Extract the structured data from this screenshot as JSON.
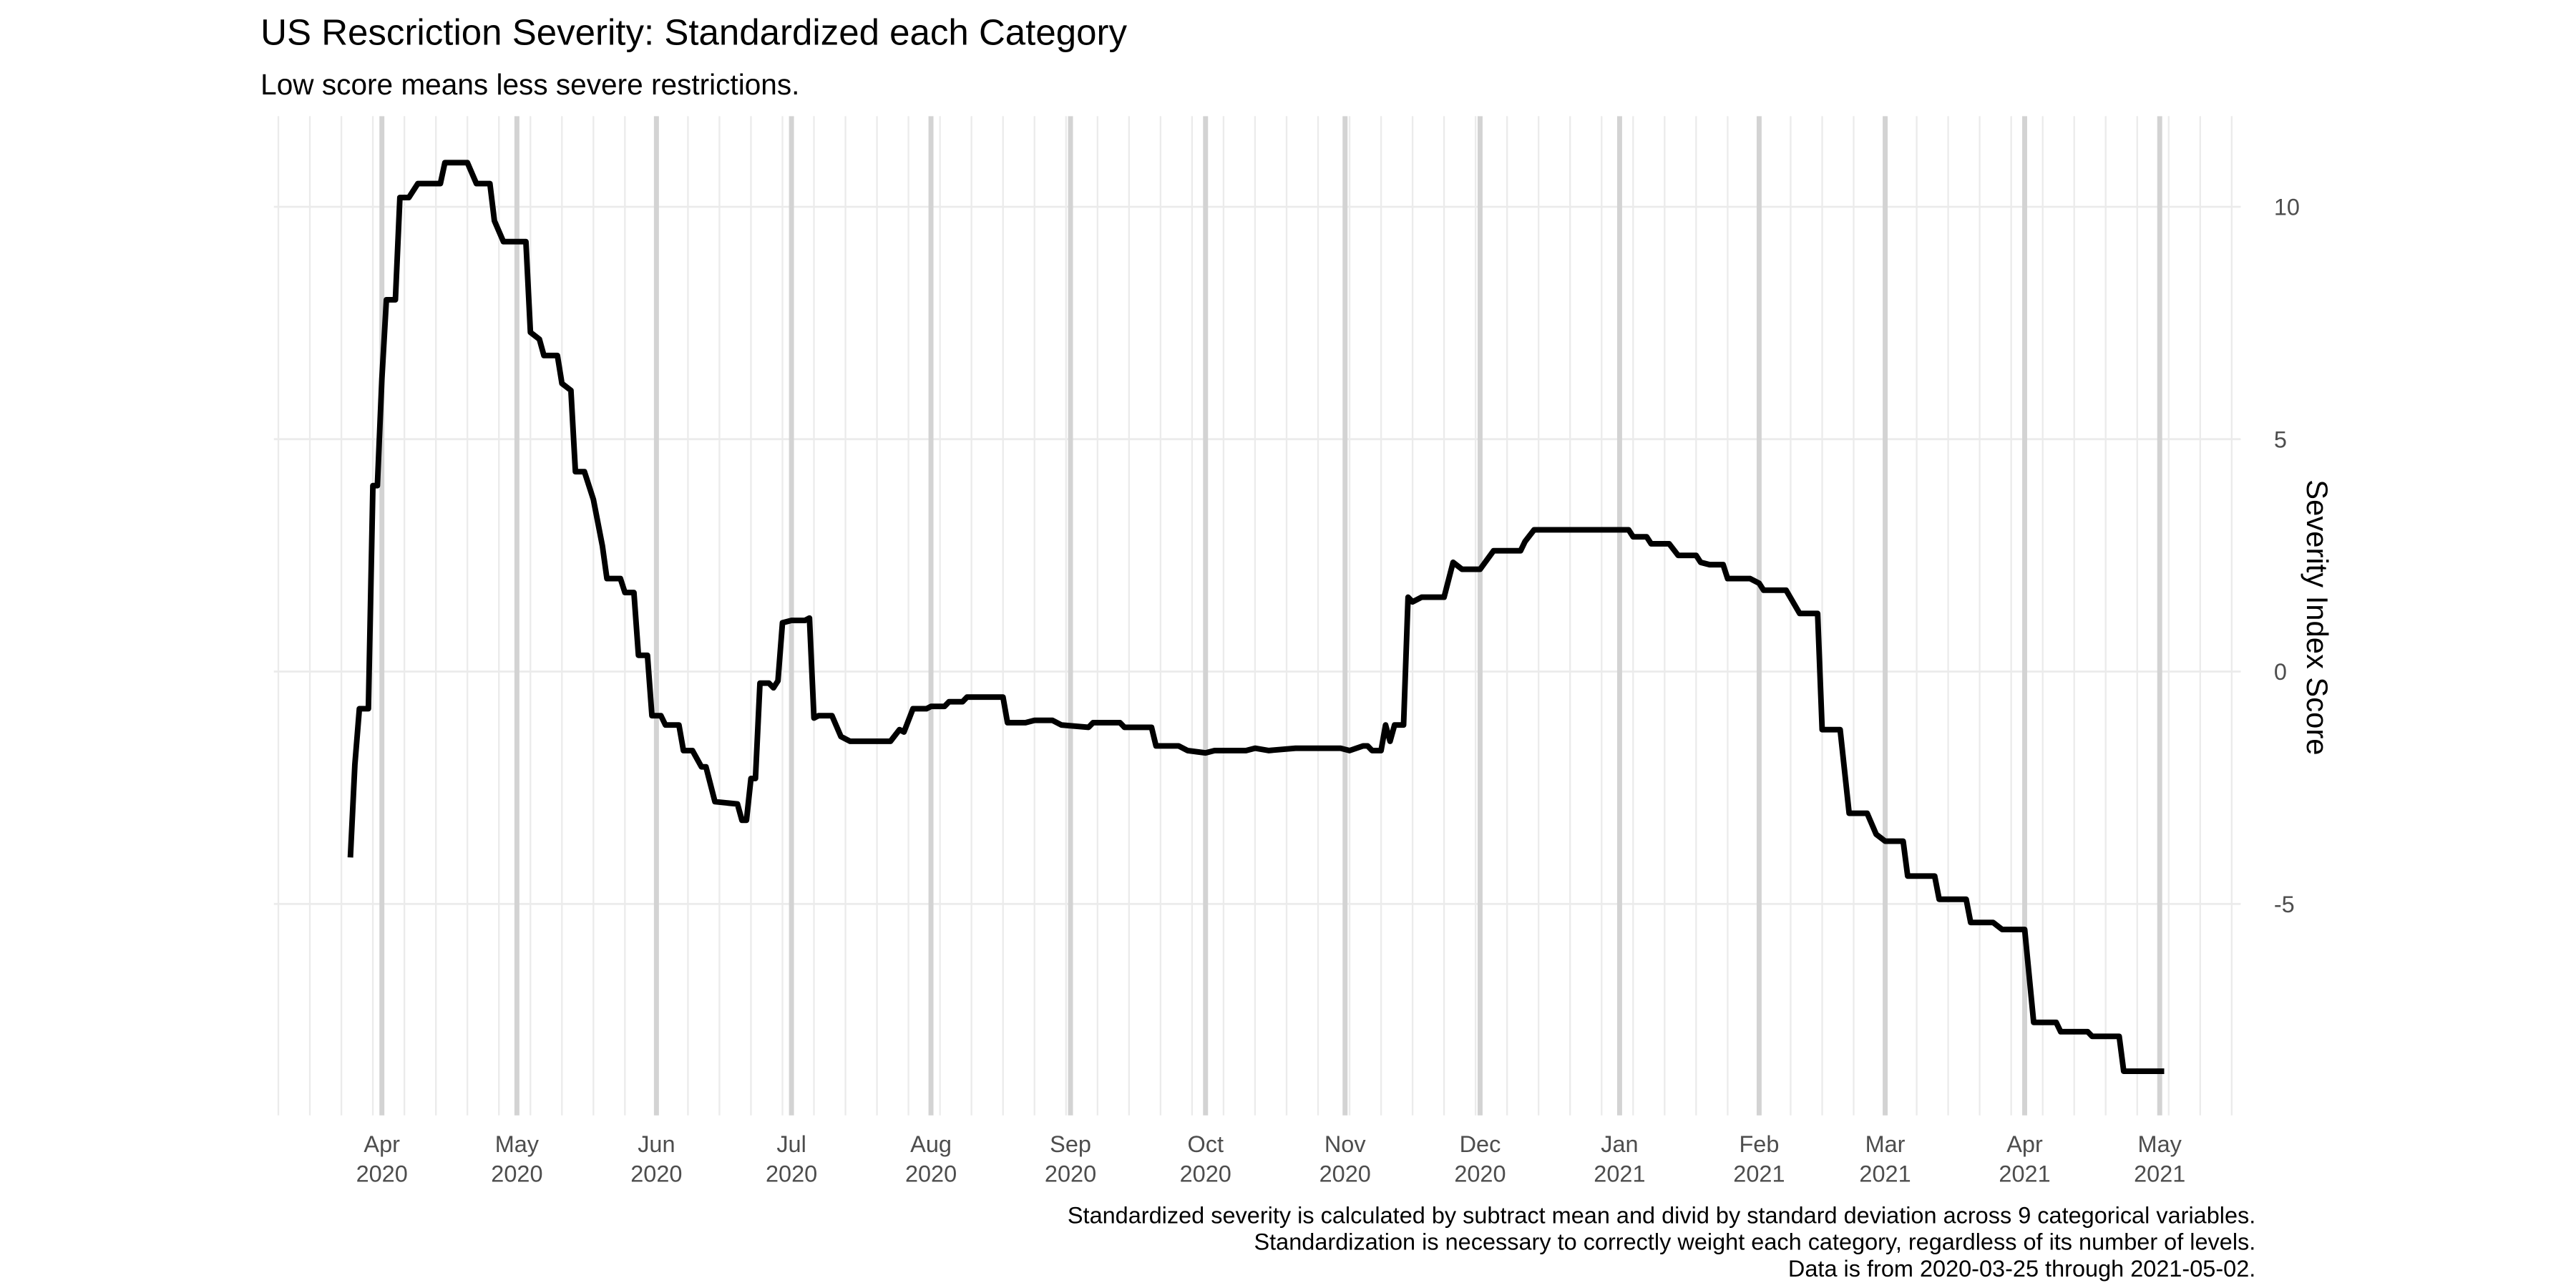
{
  "chart_data": {
    "type": "line",
    "title": "US Rescriction Severity: Standardized each Category",
    "subtitle": "Low score means less severe restrictions.",
    "y_label": "Severity Index Score",
    "caption": [
      "Standardized severity is calculated by subtract mean and divid by standard deviation across 9 categorical variables.",
      "Standardization is necessary to correctly weight each category, regardless of its number of levels.",
      "Data is from 2020-03-25 through 2021-05-02."
    ],
    "y_axis_side": "right",
    "xlim": [
      "2020-03-08",
      "2021-05-19"
    ],
    "ylim": [
      -9.55,
      11.95
    ],
    "yticks": [
      -5,
      0,
      5,
      10
    ],
    "xticks": [
      {
        "value": "2020-04-01",
        "label": [
          "Apr",
          "2020"
        ]
      },
      {
        "value": "2020-05-01",
        "label": [
          "May",
          "2020"
        ]
      },
      {
        "value": "2020-06-01",
        "label": [
          "Jun",
          "2020"
        ]
      },
      {
        "value": "2020-07-01",
        "label": [
          "Jul",
          "2020"
        ]
      },
      {
        "value": "2020-08-01",
        "label": [
          "Aug",
          "2020"
        ]
      },
      {
        "value": "2020-09-01",
        "label": [
          "Sep",
          "2020"
        ]
      },
      {
        "value": "2020-10-01",
        "label": [
          "Oct",
          "2020"
        ]
      },
      {
        "value": "2020-11-01",
        "label": [
          "Nov",
          "2020"
        ]
      },
      {
        "value": "2020-12-01",
        "label": [
          "Dec",
          "2020"
        ]
      },
      {
        "value": "2021-01-01",
        "label": [
          "Jan",
          "2021"
        ]
      },
      {
        "value": "2021-02-01",
        "label": [
          "Feb",
          "2021"
        ]
      },
      {
        "value": "2021-03-01",
        "label": [
          "Mar",
          "2021"
        ]
      },
      {
        "value": "2021-04-01",
        "label": [
          "Apr",
          "2021"
        ]
      },
      {
        "value": "2021-05-01",
        "label": [
          "May",
          "2021"
        ]
      }
    ],
    "minor_xticks": [
      "2020-03-09",
      "2020-03-16",
      "2020-03-23",
      "2020-03-30",
      "2020-04-06",
      "2020-04-13",
      "2020-04-20",
      "2020-04-27",
      "2020-05-04",
      "2020-05-11",
      "2020-05-18",
      "2020-05-25",
      "2020-06-01",
      "2020-06-08",
      "2020-06-15",
      "2020-06-22",
      "2020-06-29",
      "2020-07-06",
      "2020-07-13",
      "2020-07-20",
      "2020-07-27",
      "2020-08-03",
      "2020-08-10",
      "2020-08-17",
      "2020-08-24",
      "2020-08-31",
      "2020-09-07",
      "2020-09-14",
      "2020-09-21",
      "2020-09-28",
      "2020-10-05",
      "2020-10-12",
      "2020-10-19",
      "2020-10-26",
      "2020-11-02",
      "2020-11-09",
      "2020-11-16",
      "2020-11-23",
      "2020-11-30",
      "2020-12-07",
      "2020-12-14",
      "2020-12-21",
      "2020-12-28",
      "2021-01-04",
      "2021-01-11",
      "2021-01-18",
      "2021-01-25",
      "2021-02-01",
      "2021-02-08",
      "2021-02-15",
      "2021-02-22",
      "2021-03-01",
      "2021-03-08",
      "2021-03-15",
      "2021-03-22",
      "2021-03-29",
      "2021-04-05",
      "2021-04-12",
      "2021-04-19",
      "2021-04-26",
      "2021-05-03",
      "2021-05-10",
      "2021-05-17"
    ],
    "grid": true,
    "series": [
      {
        "color": "#000000",
        "x": [
          "2020-03-25",
          "2020-03-26",
          "2020-03-27",
          "2020-03-29",
          "2020-03-30",
          "2020-03-31",
          "2020-04-01",
          "2020-04-02",
          "2020-04-04",
          "2020-04-05",
          "2020-04-07",
          "2020-04-09",
          "2020-04-14",
          "2020-04-15",
          "2020-04-20",
          "2020-04-22",
          "2020-04-25",
          "2020-04-26",
          "2020-04-28",
          "2020-05-03",
          "2020-05-04",
          "2020-05-06",
          "2020-05-07",
          "2020-05-10",
          "2020-05-11",
          "2020-05-13",
          "2020-05-14",
          "2020-05-16",
          "2020-05-18",
          "2020-05-20",
          "2020-05-21",
          "2020-05-24",
          "2020-05-25",
          "2020-05-27",
          "2020-05-28",
          "2020-05-30",
          "2020-05-31",
          "2020-06-02",
          "2020-06-03",
          "2020-06-06",
          "2020-06-07",
          "2020-06-09",
          "2020-06-11",
          "2020-06-12",
          "2020-06-14",
          "2020-06-19",
          "2020-06-20",
          "2020-06-21",
          "2020-06-22",
          "2020-06-23",
          "2020-06-24",
          "2020-06-26",
          "2020-06-27",
          "2020-06-28",
          "2020-06-29",
          "2020-07-01",
          "2020-07-04",
          "2020-07-05",
          "2020-07-06",
          "2020-07-07",
          "2020-07-10",
          "2020-07-12",
          "2020-07-14",
          "2020-07-23",
          "2020-07-25",
          "2020-07-26",
          "2020-07-28",
          "2020-07-31",
          "2020-08-01",
          "2020-08-04",
          "2020-08-05",
          "2020-08-08",
          "2020-08-09",
          "2020-08-17",
          "2020-08-18",
          "2020-08-22",
          "2020-08-24",
          "2020-08-28",
          "2020-08-30",
          "2020-09-05",
          "2020-09-06",
          "2020-09-12",
          "2020-09-13",
          "2020-09-19",
          "2020-09-20",
          "2020-09-25",
          "2020-09-27",
          "2020-10-01",
          "2020-10-03",
          "2020-10-10",
          "2020-10-12",
          "2020-10-15",
          "2020-10-21",
          "2020-10-31",
          "2020-11-02",
          "2020-11-05",
          "2020-11-06",
          "2020-11-07",
          "2020-11-09",
          "2020-11-10",
          "2020-11-11",
          "2020-11-12",
          "2020-11-14",
          "2020-11-15",
          "2020-11-16",
          "2020-11-18",
          "2020-11-23",
          "2020-11-25",
          "2020-11-27",
          "2020-12-01",
          "2020-12-04",
          "2020-12-10",
          "2020-12-11",
          "2020-12-13",
          "2021-01-03",
          "2021-01-04",
          "2021-01-07",
          "2021-01-08",
          "2021-01-12",
          "2021-01-14",
          "2021-01-18",
          "2021-01-19",
          "2021-01-21",
          "2021-01-24",
          "2021-01-25",
          "2021-01-30",
          "2021-02-01",
          "2021-02-02",
          "2021-02-07",
          "2021-02-10",
          "2021-02-14",
          "2021-02-15",
          "2021-02-19",
          "2021-02-21",
          "2021-02-25",
          "2021-02-27",
          "2021-03-01",
          "2021-03-05",
          "2021-03-06",
          "2021-03-12",
          "2021-03-13",
          "2021-03-19",
          "2021-03-20",
          "2021-03-25",
          "2021-03-27",
          "2021-04-01",
          "2021-04-03",
          "2021-04-08",
          "2021-04-09",
          "2021-04-15",
          "2021-04-16",
          "2021-04-22",
          "2021-04-23",
          "2021-05-02"
        ],
        "values": [
          -4.0,
          -2.0,
          -0.8,
          -0.8,
          4.0,
          4.0,
          6.3,
          8.0,
          8.0,
          10.2,
          10.2,
          10.5,
          10.5,
          10.95,
          10.95,
          10.5,
          10.5,
          9.7,
          9.25,
          9.25,
          7.3,
          7.15,
          6.8,
          6.8,
          6.2,
          6.05,
          4.3,
          4.3,
          3.7,
          2.7,
          2.0,
          2.0,
          1.7,
          1.7,
          0.35,
          0.35,
          -0.95,
          -0.95,
          -1.15,
          -1.15,
          -1.7,
          -1.7,
          -2.05,
          -2.05,
          -2.8,
          -2.85,
          -3.2,
          -3.2,
          -2.3,
          -2.3,
          -0.25,
          -0.25,
          -0.35,
          -0.2,
          1.05,
          1.1,
          1.1,
          1.15,
          -1.0,
          -0.95,
          -0.95,
          -1.4,
          -1.5,
          -1.5,
          -1.25,
          -1.3,
          -0.8,
          -0.8,
          -0.75,
          -0.75,
          -0.65,
          -0.65,
          -0.55,
          -0.55,
          -1.1,
          -1.1,
          -1.05,
          -1.05,
          -1.15,
          -1.2,
          -1.1,
          -1.1,
          -1.2,
          -1.2,
          -1.6,
          -1.6,
          -1.7,
          -1.75,
          -1.7,
          -1.7,
          -1.65,
          -1.7,
          -1.65,
          -1.65,
          -1.7,
          -1.6,
          -1.6,
          -1.7,
          -1.7,
          -1.15,
          -1.5,
          -1.15,
          -1.15,
          1.6,
          1.5,
          1.6,
          1.6,
          2.35,
          2.2,
          2.2,
          2.6,
          2.6,
          2.8,
          3.05,
          3.05,
          2.9,
          2.9,
          2.75,
          2.75,
          2.5,
          2.5,
          2.35,
          2.3,
          2.3,
          2.0,
          2.0,
          1.9,
          1.75,
          1.75,
          1.25,
          1.25,
          -1.25,
          -1.25,
          -3.05,
          -3.05,
          -3.5,
          -3.65,
          -3.65,
          -4.4,
          -4.4,
          -4.9,
          -4.9,
          -5.4,
          -5.4,
          -5.55,
          -5.55,
          -7.55,
          -7.55,
          -7.75,
          -7.75,
          -7.85,
          -7.85,
          -8.6,
          -8.6
        ]
      }
    ]
  }
}
